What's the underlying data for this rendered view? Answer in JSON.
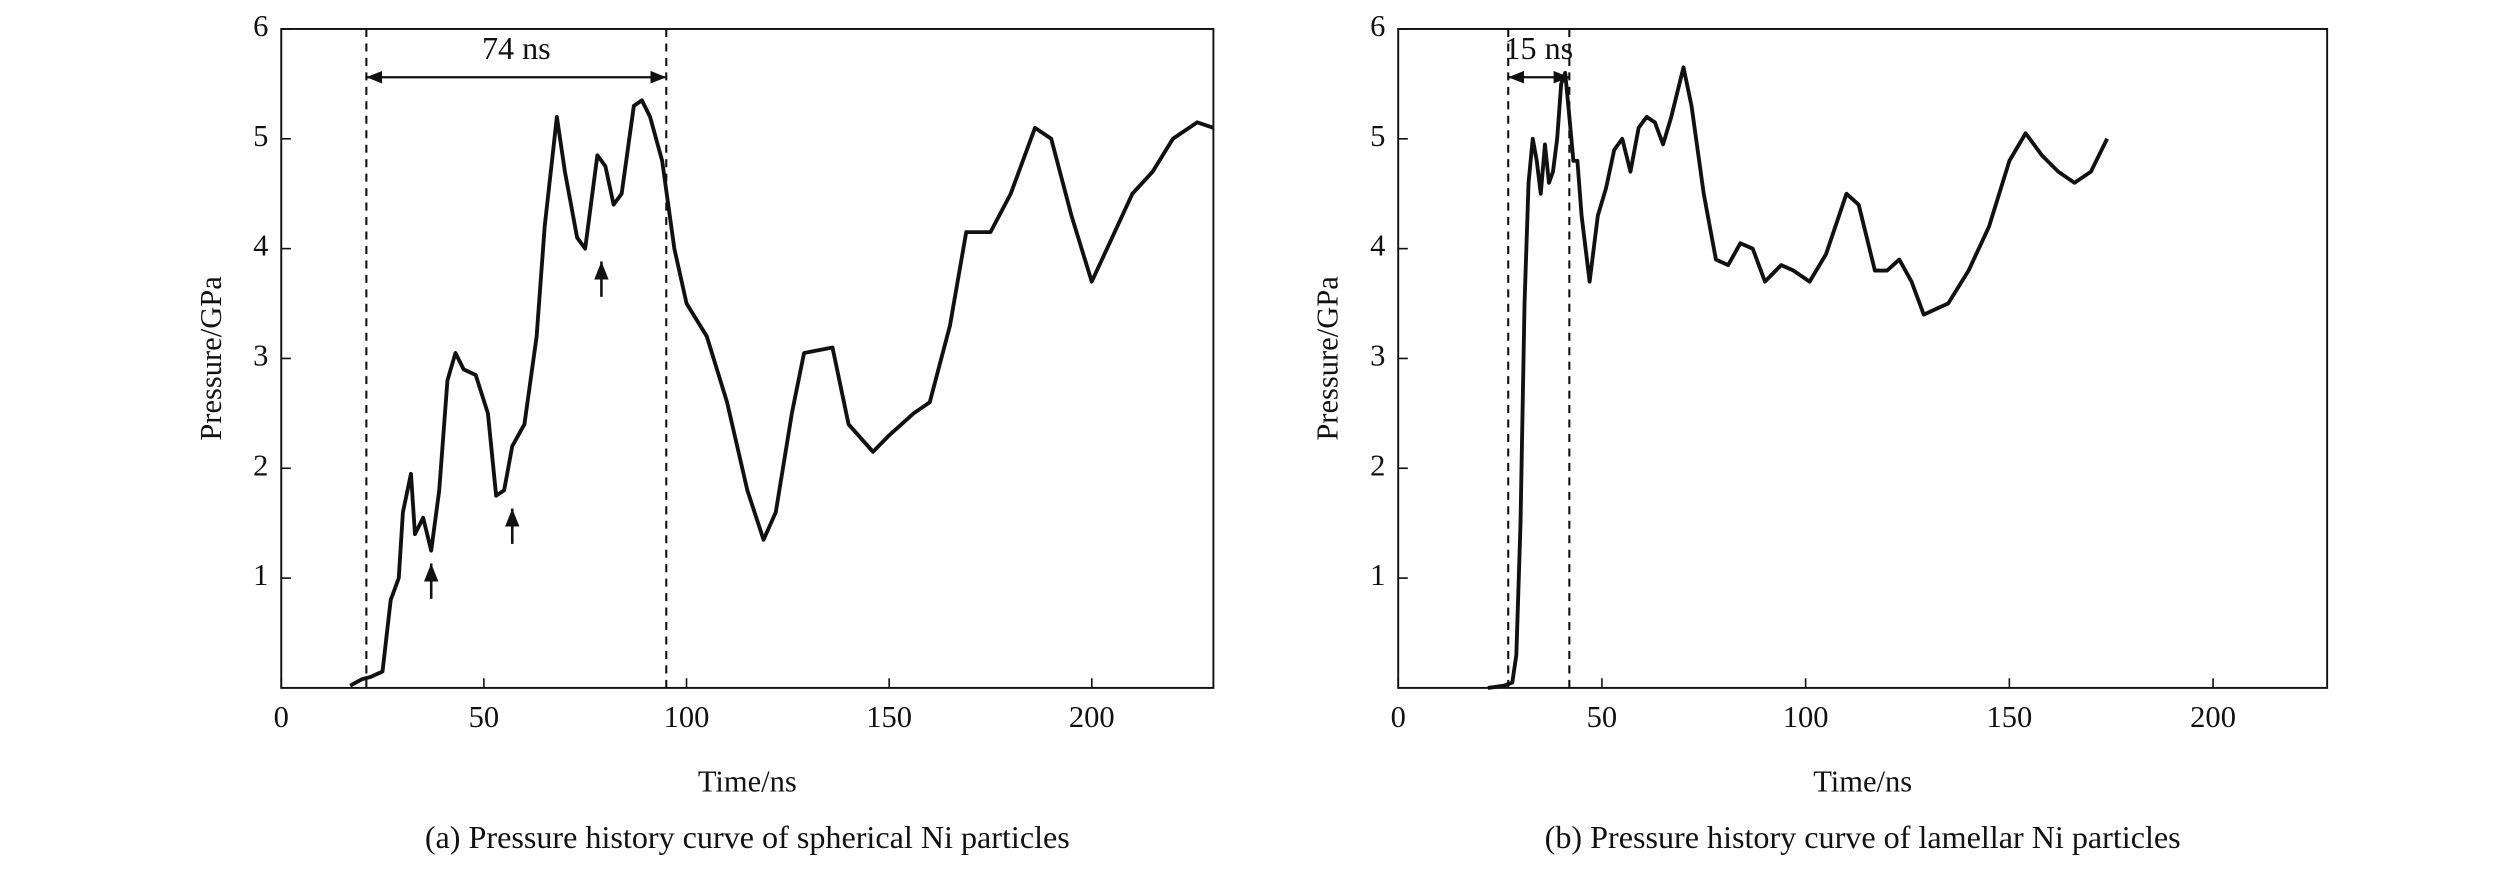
{
  "chart_data": [
    {
      "type": "line",
      "caption": "(a) Pressure history curve of spherical Ni particles",
      "xlabel": "Time/ns",
      "ylabel": "Pressure/GPa",
      "xlim": [
        0,
        230
      ],
      "ylim": [
        0,
        6
      ],
      "xticks": [
        0,
        50,
        100,
        150,
        200
      ],
      "yticks": [
        1,
        2,
        3,
        4,
        5,
        6
      ],
      "color": "#111111",
      "x": [
        17,
        20,
        22,
        25,
        27,
        29,
        30,
        32,
        33,
        35,
        37,
        39,
        41,
        43,
        45,
        48,
        51,
        53,
        55,
        57,
        60,
        63,
        65,
        68,
        70,
        73,
        75,
        78,
        80,
        82,
        84,
        87,
        89,
        91,
        94,
        97,
        100,
        105,
        110,
        115,
        119,
        122,
        126,
        129,
        136,
        140,
        146,
        150,
        156,
        160,
        165,
        169,
        175,
        180,
        186,
        190,
        195,
        200,
        205,
        210,
        215,
        220,
        226,
        230
      ],
      "values": [
        0.02,
        0.08,
        0.1,
        0.15,
        0.8,
        1.0,
        1.6,
        1.95,
        1.4,
        1.55,
        1.25,
        1.8,
        2.8,
        3.05,
        2.9,
        2.85,
        2.5,
        1.75,
        1.8,
        2.2,
        2.4,
        3.2,
        4.2,
        5.2,
        4.7,
        4.1,
        4.0,
        4.85,
        4.75,
        4.4,
        4.5,
        5.3,
        5.35,
        5.2,
        4.8,
        4.0,
        3.5,
        3.2,
        2.6,
        1.8,
        1.35,
        1.6,
        2.5,
        3.05,
        3.1,
        2.4,
        2.15,
        2.3,
        2.5,
        2.6,
        3.3,
        4.15,
        4.15,
        4.5,
        5.1,
        5.0,
        4.3,
        3.7,
        4.1,
        4.5,
        4.7,
        5.0,
        5.15,
        5.1
      ],
      "interval": {
        "x": [
          21,
          95
        ],
        "label": "74 ns"
      },
      "arrows": [
        {
          "x": 37,
          "y": 1.25
        },
        {
          "x": 57,
          "y": 1.75
        },
        {
          "x": 79,
          "y": 4.0
        }
      ]
    },
    {
      "type": "line",
      "caption": "(b) Pressure history curve of lamellar Ni particles",
      "xlabel": "Time/ns",
      "ylabel": "Pressure/GPa",
      "xlim": [
        0,
        228
      ],
      "ylim": [
        0,
        6
      ],
      "xticks": [
        0,
        50,
        100,
        150,
        200
      ],
      "yticks": [
        1,
        2,
        3,
        4,
        5,
        6
      ],
      "color": "#111111",
      "x": [
        22,
        26,
        28,
        29,
        30,
        31,
        32,
        33,
        34,
        35,
        36,
        37,
        38,
        39,
        40,
        41,
        42,
        43,
        44,
        45,
        47,
        49,
        51,
        53,
        55,
        57,
        59,
        61,
        63,
        65,
        67,
        70,
        72,
        75,
        78,
        81,
        84,
        87,
        90,
        94,
        97,
        101,
        105,
        110,
        113,
        117,
        120,
        123,
        126,
        129,
        132,
        135,
        140,
        145,
        150,
        154,
        158,
        162,
        166,
        170,
        174
      ],
      "values": [
        0,
        0.02,
        0.05,
        0.3,
        1.5,
        3.5,
        4.6,
        5.0,
        4.8,
        4.5,
        4.95,
        4.6,
        4.7,
        5.0,
        5.5,
        5.6,
        5.2,
        4.8,
        4.8,
        4.3,
        3.7,
        4.3,
        4.55,
        4.9,
        5.0,
        4.7,
        5.1,
        5.2,
        5.15,
        4.95,
        5.2,
        5.65,
        5.3,
        4.5,
        3.9,
        3.85,
        4.05,
        4.0,
        3.7,
        3.85,
        3.8,
        3.7,
        3.95,
        4.5,
        4.4,
        3.8,
        3.8,
        3.9,
        3.7,
        3.4,
        3.45,
        3.5,
        3.8,
        4.2,
        4.8,
        5.05,
        4.85,
        4.7,
        4.6,
        4.7,
        5.0
      ],
      "interval": {
        "x": [
          27,
          42
        ],
        "label": "15 ns"
      }
    }
  ]
}
